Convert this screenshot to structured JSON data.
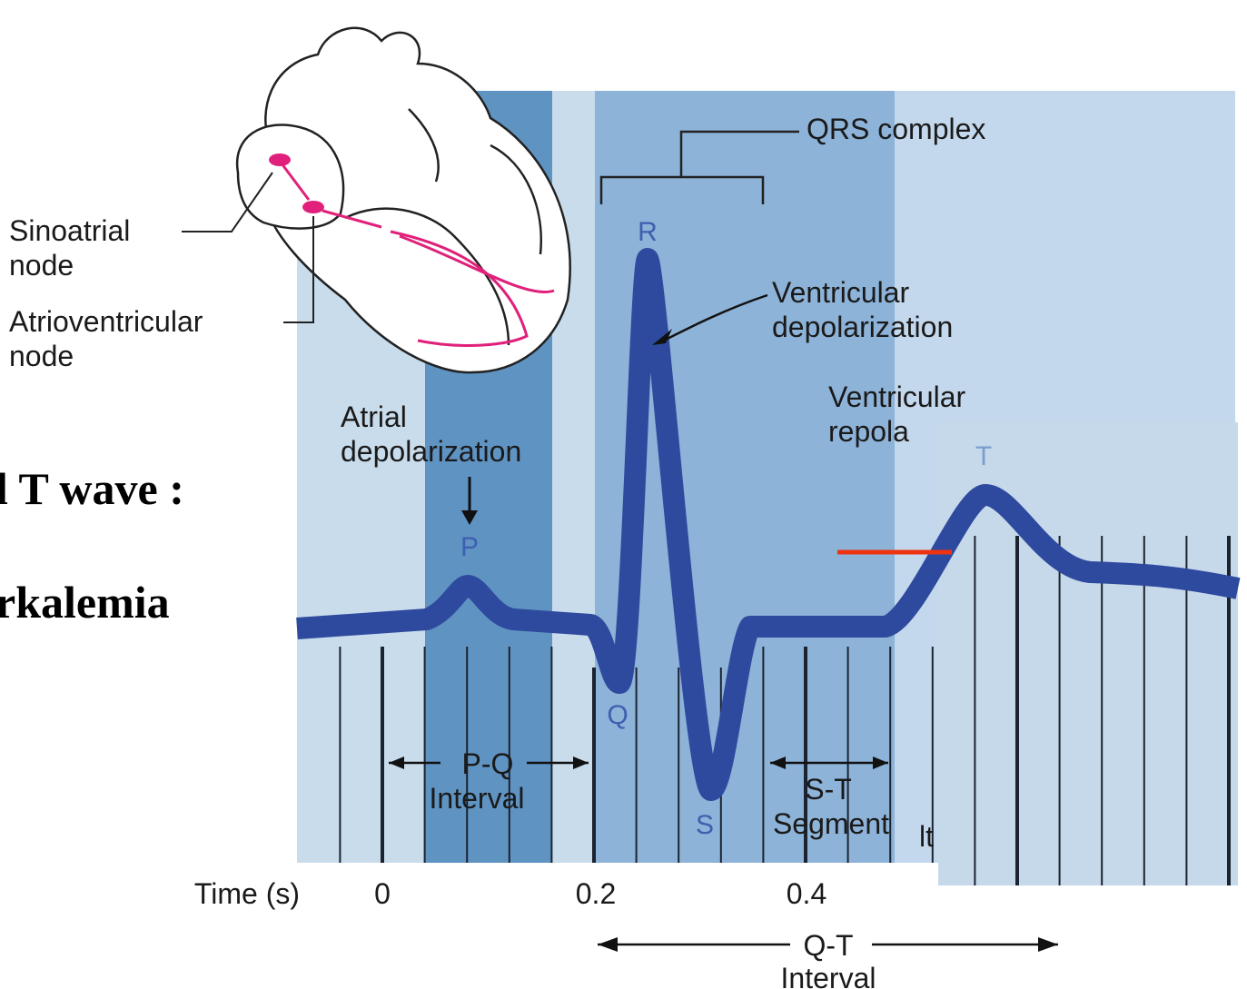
{
  "slide_text": [
    "l T wave :",
    "rkalemia"
  ],
  "heart": {
    "sinoatrial_node": [
      "Sinoatrial",
      "node"
    ],
    "atrioventricular_node": [
      "Atrioventricular",
      "node"
    ]
  },
  "ecg": {
    "qrs_complex": "QRS complex",
    "ventricular_depolarization": [
      "Ventricular",
      "depolarization"
    ],
    "ventricular_repolarization": [
      "Ventricular",
      "repola"
    ],
    "atrial_depolarization": [
      "Atrial",
      "depolarization"
    ],
    "waves": {
      "p": "P",
      "q": "Q",
      "r": "R",
      "s": "S",
      "t": "T"
    },
    "pq_interval": [
      "P-Q",
      "Interval"
    ],
    "st_segment": [
      "S-T",
      "Segment"
    ],
    "qt_interval": [
      "Q-T",
      "Interval"
    ],
    "fragment": "lt",
    "time_axis": {
      "label": "Time (s)",
      "ticks": [
        "0",
        "0.2",
        "0.4"
      ]
    }
  }
}
